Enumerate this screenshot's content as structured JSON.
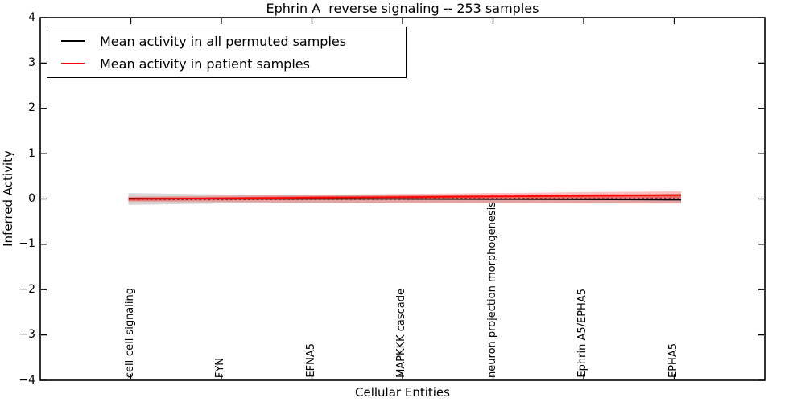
{
  "figure": {
    "title": "Ephrin A  reverse signaling -- 253 samples",
    "xlabel": "Cellular Entities",
    "ylabel": "Inferred Activity"
  },
  "legend": {
    "entries": [
      {
        "label": "Mean activity in all permuted samples",
        "color": "#000000"
      },
      {
        "label": "Mean activity in patient samples",
        "color": "#ff0000"
      }
    ]
  },
  "chart_data": {
    "type": "line",
    "title": "Ephrin A  reverse signaling -- 253 samples",
    "xlabel": "Cellular Entities",
    "ylabel": "Inferred Activity",
    "xlim": [
      0,
      8
    ],
    "ylim": [
      -4,
      4
    ],
    "grid": false,
    "legend_position": "upper left",
    "y_ticks": [
      4,
      3,
      2,
      1,
      0,
      -1,
      -2,
      -3,
      -4
    ],
    "y_tick_labels": [
      "4",
      "3",
      "2",
      "1",
      "0",
      "−1",
      "−2",
      "−3",
      "−4"
    ],
    "x_positions": [
      1,
      2,
      3,
      4,
      5,
      6,
      7
    ],
    "x_tick_labels": [
      "cell-cell signaling",
      "FYN",
      "EFNA5",
      "MAPKKK cascade",
      "neuron projection morphogenesis",
      "Ephrin A5/EPHA5",
      "EPHA5"
    ],
    "series": [
      {
        "name": "Mean activity in all permuted samples",
        "color": "#000000",
        "style": "solid",
        "width": 1.6,
        "values": [
          0.01,
          0.005,
          0.0,
          0.0,
          -0.005,
          -0.01,
          -0.02
        ]
      },
      {
        "name": "zero reference (dotted)",
        "color": "#000000",
        "style": "dotted",
        "width": 2.0,
        "values": [
          0,
          0,
          0,
          0,
          0,
          0,
          0
        ]
      },
      {
        "name": "Mean activity in patient samples",
        "color": "#ff0000",
        "style": "solid",
        "width": 1.8,
        "values": [
          0.0,
          0.015,
          0.03,
          0.04,
          0.055,
          0.07,
          0.085
        ]
      }
    ],
    "bands": [
      {
        "name": "permuted samples std band",
        "color": "#8c8c8c",
        "opacity": 0.35,
        "upper": [
          0.13,
          0.1,
          0.09,
          0.09,
          0.1,
          0.1,
          0.11
        ],
        "lower": [
          -0.13,
          -0.1,
          -0.09,
          -0.09,
          -0.09,
          -0.08,
          -0.08
        ]
      },
      {
        "name": "patient samples outer std band",
        "color": "#ff2a2a",
        "opacity": 0.3,
        "upper": [
          0.05,
          0.07,
          0.09,
          0.11,
          0.13,
          0.15,
          0.17
        ],
        "lower": [
          -0.06,
          -0.07,
          -0.08,
          -0.09,
          -0.09,
          -0.1,
          -0.1
        ]
      },
      {
        "name": "patient samples inner std band",
        "color": "#ee2222",
        "opacity": 0.45,
        "upper": [
          0.03,
          0.04,
          0.06,
          0.07,
          0.09,
          0.1,
          0.11
        ],
        "lower": [
          -0.04,
          -0.03,
          -0.02,
          -0.01,
          0.0,
          0.01,
          0.02
        ]
      }
    ]
  },
  "layout_note_colors": {
    "axis": "#000000",
    "background": "#ffffff"
  }
}
